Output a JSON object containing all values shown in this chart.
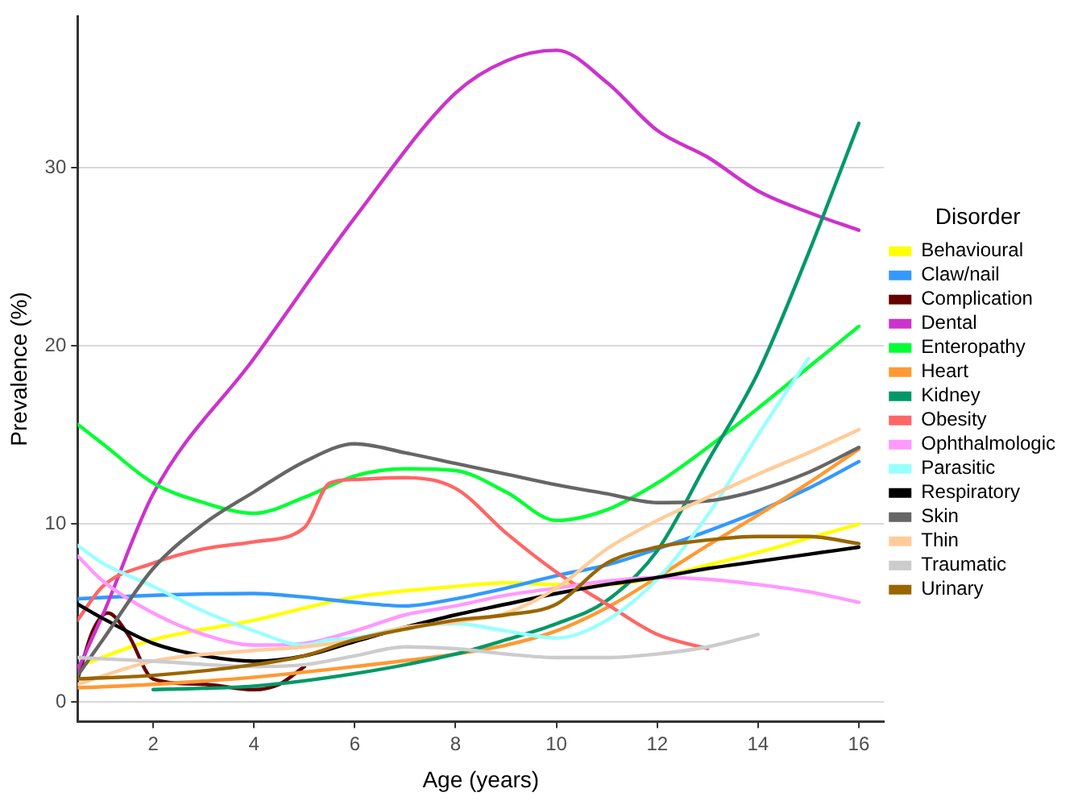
{
  "chart_data": {
    "type": "line",
    "xlabel": "Age (years)",
    "ylabel": "Prevalence (%)",
    "legend_title": "Disorder",
    "legend": "right",
    "grid": "y",
    "marker": "none",
    "line_style": "solid",
    "xlim": [
      0.5,
      16.5
    ],
    "ylim": [
      -1.1,
      38.5
    ],
    "xticks": [
      2,
      4,
      6,
      8,
      10,
      12,
      14,
      16
    ],
    "yticks": [
      0,
      10,
      20,
      30
    ],
    "series": [
      {
        "name": "Behavioural",
        "color": "#ffff00",
        "x": [
          0.5,
          2,
          4,
          6,
          8,
          9,
          10,
          11,
          12,
          13,
          14,
          15,
          16
        ],
        "values": [
          2.0,
          3.5,
          4.6,
          5.9,
          6.5,
          6.7,
          6.6,
          6.6,
          7.0,
          7.7,
          8.4,
          9.2,
          10.0
        ]
      },
      {
        "name": "Claw/nail",
        "color": "#3399ff",
        "x": [
          0.5,
          2,
          4,
          5,
          6,
          7,
          8,
          9,
          10,
          11,
          12,
          13,
          14,
          15,
          16
        ],
        "values": [
          5.8,
          6.0,
          6.1,
          5.9,
          5.6,
          5.4,
          5.8,
          6.4,
          7.1,
          7.7,
          8.6,
          9.6,
          10.7,
          12.0,
          13.5
        ]
      },
      {
        "name": "Complication",
        "color": "#660000",
        "x": [
          0.5,
          0.8,
          1.1,
          1.5,
          2,
          3,
          4,
          4.5,
          5
        ],
        "values": [
          1.3,
          4.0,
          5.0,
          3.8,
          1.3,
          1.0,
          0.7,
          1.0,
          2.0
        ]
      },
      {
        "name": "Dental",
        "color": "#cc33cc",
        "x": [
          0.5,
          1,
          2,
          4,
          6,
          8,
          9,
          10,
          11,
          12,
          13,
          14,
          15,
          16
        ],
        "values": [
          1.8,
          4.9,
          11.7,
          19.3,
          27.2,
          34.2,
          36.0,
          36.6,
          34.8,
          32.1,
          30.6,
          28.7,
          27.5,
          26.5
        ]
      },
      {
        "name": "Enteropathy",
        "color": "#00ff33",
        "x": [
          0.5,
          1,
          2,
          3,
          4,
          5,
          6,
          7,
          8,
          9,
          10,
          11,
          12,
          13,
          14,
          15,
          16
        ],
        "values": [
          15.6,
          14.5,
          12.3,
          11.2,
          10.6,
          11.5,
          12.7,
          13.1,
          13.0,
          11.8,
          10.2,
          10.8,
          12.3,
          14.3,
          16.5,
          18.8,
          21.1
        ]
      },
      {
        "name": "Heart",
        "color": "#ff9933",
        "x": [
          0.5,
          2,
          4,
          6,
          8,
          9,
          10,
          11,
          12,
          13,
          14,
          15,
          16
        ],
        "values": [
          0.8,
          1.0,
          1.4,
          2.0,
          2.7,
          3.2,
          4.0,
          5.3,
          7.0,
          8.8,
          10.5,
          12.3,
          14.2
        ]
      },
      {
        "name": "Kidney",
        "color": "#009966",
        "x": [
          2,
          4,
          6,
          8,
          9,
          10,
          11,
          12,
          13,
          14,
          15,
          16
        ],
        "values": [
          0.7,
          0.9,
          1.6,
          2.7,
          3.5,
          4.4,
          5.7,
          8.5,
          13.5,
          18.5,
          25.2,
          32.5
        ]
      },
      {
        "name": "Obesity",
        "color": "#ff6666",
        "x": [
          0.5,
          1,
          2,
          3,
          4,
          5,
          5.5,
          6,
          7,
          8,
          9,
          10,
          11,
          12,
          13
        ],
        "values": [
          4.6,
          6.5,
          7.8,
          8.6,
          9.0,
          9.8,
          12.3,
          12.5,
          12.6,
          12.0,
          9.5,
          7.3,
          5.5,
          3.8,
          3.0
        ]
      },
      {
        "name": "Ophthalmologic",
        "color": "#ff99ff",
        "x": [
          0.5,
          1,
          2,
          3,
          4,
          5,
          6,
          7,
          8,
          9,
          10,
          11,
          12,
          13,
          14,
          15,
          16
        ],
        "values": [
          8.2,
          6.8,
          5.0,
          3.8,
          3.2,
          3.3,
          4.0,
          4.9,
          5.4,
          6.0,
          6.4,
          6.8,
          7.0,
          6.9,
          6.6,
          6.2,
          5.6
        ]
      },
      {
        "name": "Parasitic",
        "color": "#99ffff",
        "x": [
          0.5,
          1,
          2,
          3,
          4,
          5,
          5.5,
          6,
          7,
          8,
          9,
          10,
          11,
          12,
          13,
          14,
          15
        ],
        "values": [
          8.8,
          7.8,
          6.5,
          5.1,
          4.0,
          3.2,
          3.5,
          3.6,
          4.2,
          4.4,
          4.0,
          3.6,
          4.6,
          6.9,
          10.5,
          15.0,
          19.3
        ]
      },
      {
        "name": "Respiratory",
        "color": "#000000",
        "x": [
          0.5,
          1,
          2,
          3,
          4,
          5,
          6,
          7,
          8,
          9,
          10,
          11,
          12,
          13,
          14,
          15,
          16
        ],
        "values": [
          5.5,
          4.7,
          3.3,
          2.6,
          2.3,
          2.6,
          3.4,
          4.2,
          4.9,
          5.5,
          6.1,
          6.6,
          7.0,
          7.5,
          7.9,
          8.3,
          8.7
        ]
      },
      {
        "name": "Skin",
        "color": "#666666",
        "x": [
          0.5,
          1,
          2,
          3,
          4,
          5,
          6,
          7,
          8,
          9,
          10,
          11,
          12,
          13,
          14,
          15,
          16
        ],
        "values": [
          1.5,
          3.5,
          7.5,
          10.0,
          11.8,
          13.5,
          14.5,
          14.0,
          13.4,
          12.8,
          12.2,
          11.7,
          11.2,
          11.3,
          11.9,
          12.9,
          14.3
        ]
      },
      {
        "name": "Thin",
        "color": "#ffcc99",
        "x": [
          0.5,
          2,
          4,
          5,
          6,
          7,
          8,
          9,
          10,
          11,
          12,
          13,
          14,
          15,
          16
        ],
        "values": [
          1.0,
          2.3,
          2.9,
          3.1,
          3.5,
          4.2,
          4.5,
          5.0,
          6.4,
          8.6,
          10.2,
          11.5,
          12.8,
          14.0,
          15.3
        ]
      },
      {
        "name": "Traumatic",
        "color": "#cccccc",
        "x": [
          0.5,
          2,
          4,
          5,
          6,
          7,
          8,
          9,
          10,
          11,
          12,
          13,
          14
        ],
        "values": [
          2.5,
          2.3,
          2.0,
          2.1,
          2.6,
          3.1,
          3.0,
          2.7,
          2.5,
          2.5,
          2.7,
          3.1,
          3.8
        ]
      },
      {
        "name": "Urinary",
        "color": "#996600",
        "x": [
          0.5,
          2,
          4,
          5,
          6,
          7,
          8,
          9,
          10,
          11,
          12,
          13,
          14,
          15,
          16
        ],
        "values": [
          1.3,
          1.5,
          2.1,
          2.6,
          3.5,
          4.1,
          4.6,
          4.9,
          5.5,
          7.8,
          8.7,
          9.1,
          9.3,
          9.3,
          8.9
        ]
      }
    ]
  }
}
